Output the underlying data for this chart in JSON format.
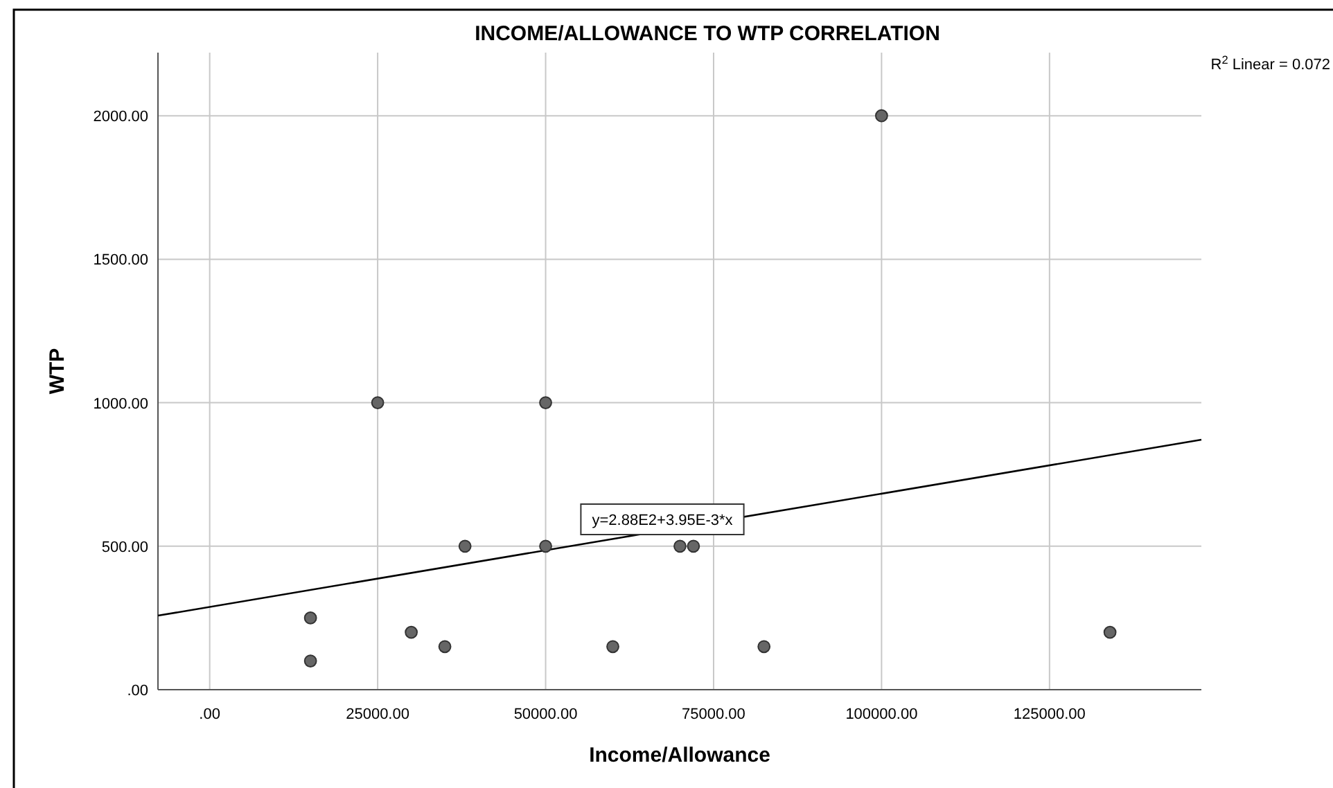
{
  "chart_data": {
    "type": "scatter",
    "title": "INCOME/ALLOWANCE TO WTP CORRELATION",
    "xlabel": "Income/Allowance",
    "ylabel": "WTP",
    "xlim": [
      -7700,
      147600
    ],
    "ylim": [
      0,
      2220
    ],
    "xticks": [
      {
        "value": 0,
        "label": ".00"
      },
      {
        "value": 25000,
        "label": "25000.00"
      },
      {
        "value": 50000,
        "label": "50000.00"
      },
      {
        "value": 75000,
        "label": "75000.00"
      },
      {
        "value": 100000,
        "label": "100000.00"
      },
      {
        "value": 125000,
        "label": "125000.00"
      }
    ],
    "yticks": [
      {
        "value": 0,
        "label": ".00"
      },
      {
        "value": 500,
        "label": "500.00"
      },
      {
        "value": 1000,
        "label": "1000.00"
      },
      {
        "value": 1500,
        "label": "1500.00"
      },
      {
        "value": 2000,
        "label": "2000.00"
      }
    ],
    "grid": true,
    "series": [
      {
        "marker": "circle",
        "color": "#666666",
        "x": [
          15000,
          15000,
          25000,
          30000,
          35000,
          38000,
          50000,
          50000,
          60000,
          70000,
          72000,
          82500,
          100000,
          134000
        ],
        "values": [
          250,
          100,
          1000,
          200,
          150,
          500,
          1000,
          500,
          150,
          500,
          500,
          150,
          2000,
          200
        ]
      },
      {
        "type": "line",
        "color": "#000000",
        "x": [
          -7700,
          147600
        ],
        "values": [
          258,
          871
        ]
      }
    ],
    "annotations": [
      "y=2.88E2+3.95E-3*x",
      "R$^{2}$ Linear = 0.072"
    ]
  }
}
